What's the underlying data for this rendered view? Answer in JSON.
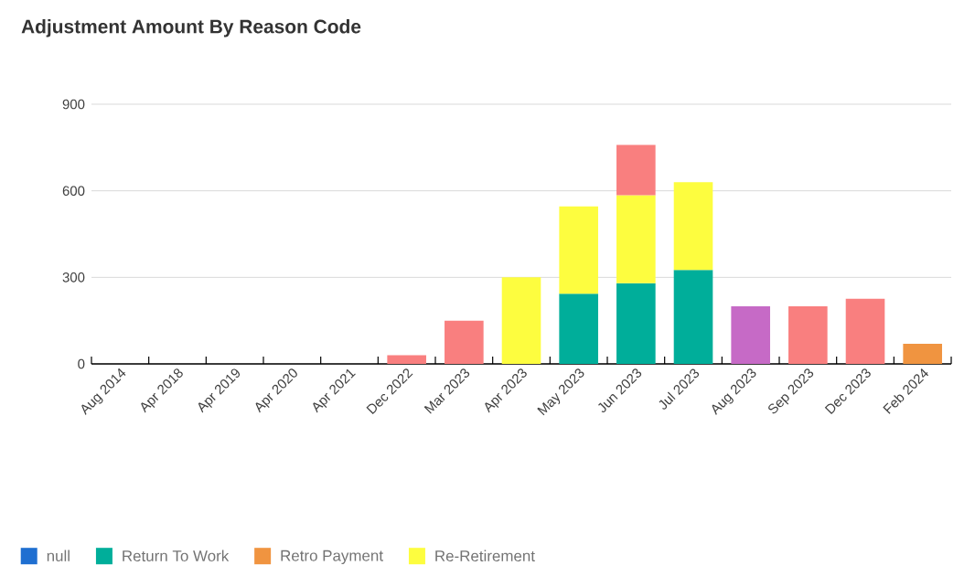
{
  "chart_data": {
    "type": "bar",
    "title": "Adjustment Amount By Reason Code",
    "categories": [
      "Aug 2014",
      "Apr 2018",
      "Apr 2019",
      "Apr 2020",
      "Apr 2021",
      "Dec 2022",
      "Mar 2023",
      "Apr 2023",
      "May 2023",
      "Jun 2023",
      "Jul 2023",
      "Aug 2023",
      "Sep 2023",
      "Dec 2023",
      "Feb 2024"
    ],
    "stacked": true,
    "series": [
      {
        "name": "null",
        "color": "#1f6fd1",
        "values": [
          null,
          null,
          null,
          null,
          null,
          null,
          null,
          null,
          null,
          null,
          null,
          null,
          null,
          null,
          null
        ]
      },
      {
        "name": "Return To Work",
        "color": "#00ae9a",
        "values": [
          null,
          null,
          null,
          null,
          null,
          null,
          null,
          null,
          243,
          280,
          326,
          null,
          null,
          null,
          null
        ]
      },
      {
        "name": "Retro Payment",
        "color": "#f09440",
        "values": [
          null,
          null,
          null,
          null,
          null,
          null,
          null,
          null,
          null,
          null,
          null,
          null,
          null,
          null,
          70
        ]
      },
      {
        "name": "Re-Retirement",
        "color": "#fdfd3f",
        "values": [
          null,
          null,
          null,
          null,
          null,
          null,
          null,
          300,
          303,
          305,
          304,
          null,
          null,
          null,
          null
        ]
      },
      {
        "color": "#f97f7f",
        "values": [
          null,
          null,
          null,
          null,
          null,
          30,
          150,
          null,
          null,
          174,
          null,
          null,
          200,
          226,
          null
        ]
      },
      {
        "color": "#c66ac6",
        "values": [
          null,
          null,
          null,
          null,
          null,
          null,
          null,
          null,
          null,
          null,
          null,
          200,
          null,
          null,
          null
        ]
      }
    ],
    "ylim": [
      0,
      900
    ],
    "yticks": [
      0,
      300,
      600,
      900
    ],
    "grid": "y",
    "legend": "bottom"
  }
}
